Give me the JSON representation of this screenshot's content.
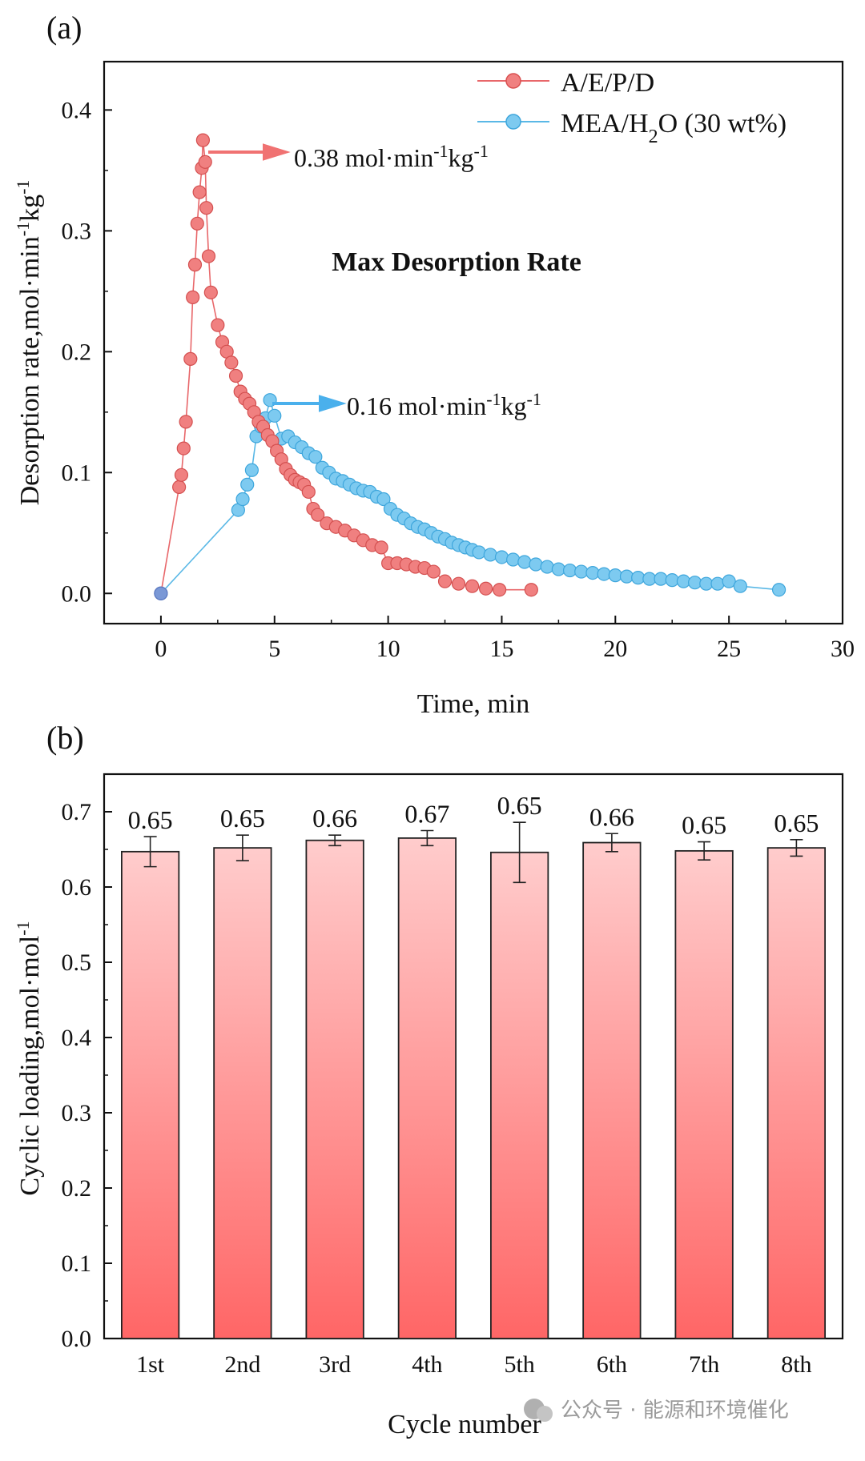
{
  "panel_a": {
    "label": "(a)"
  },
  "panel_b": {
    "label": "(b)"
  },
  "watermark": {
    "text": "公众号 · 能源和环境催化"
  },
  "colors": {
    "aepd": "#e8676a",
    "aepd_fill": "#f08080",
    "mea": "#5ab8e6",
    "mea_fill": "#7dcaf0",
    "arrow_red": "#f07272",
    "arrow_blue": "#4ab0ec",
    "bar_top": "#ffcccc",
    "bar_bottom": "#ff6666"
  },
  "chart_data": [
    {
      "type": "scatter",
      "title": "Max Desorption Rate",
      "xlabel": "Time, min",
      "ylabel_main": "Desorption rate,mol·min",
      "ylabel_sup1": "-1",
      "ylabel_mid": "kg",
      "ylabel_sup2": "-1",
      "xlim": [
        -2.5,
        30
      ],
      "ylim": [
        -0.025,
        0.44
      ],
      "xticks": [
        0,
        5,
        10,
        15,
        20,
        25,
        30
      ],
      "xtick_labels": [
        "0",
        "5",
        "10",
        "15",
        "20",
        "25",
        "30"
      ],
      "yticks": [
        0.0,
        0.1,
        0.2,
        0.3,
        0.4
      ],
      "ytick_labels": [
        "0.0",
        "0.1",
        "0.2",
        "0.3",
        "0.4"
      ],
      "grid": false,
      "legend_position": "top-right",
      "annotations": [
        {
          "main": "0.38 mol·min",
          "sup1": "-1",
          "mid": "kg",
          "sup2": "-1",
          "x": 1.8,
          "y": 0.375,
          "color_key": "arrow_red"
        },
        {
          "main": "0.16 mol·min",
          "sup1": "-1",
          "mid": "kg",
          "sup2": "-1",
          "x": 4.8,
          "y": 0.163,
          "color_key": "arrow_blue"
        }
      ],
      "series": [
        {
          "name": "A/E/P/D",
          "color_key": "aepd",
          "x": [
            0,
            0.8,
            0.9,
            1.0,
            1.1,
            1.3,
            1.4,
            1.5,
            1.6,
            1.7,
            1.8,
            1.85,
            1.95,
            2.0,
            2.1,
            2.2,
            2.5,
            2.7,
            2.9,
            3.1,
            3.3,
            3.5,
            3.7,
            3.9,
            4.1,
            4.3,
            4.5,
            4.7,
            4.9,
            5.1,
            5.3,
            5.5,
            5.7,
            5.9,
            6.1,
            6.3,
            6.5,
            6.7,
            6.9,
            7.3,
            7.7,
            8.1,
            8.5,
            8.9,
            9.3,
            9.7,
            10.0,
            10.4,
            10.8,
            11.2,
            11.6,
            12.0,
            12.5,
            13.1,
            13.7,
            14.3,
            14.9,
            16.3
          ],
          "y": [
            0.0,
            0.088,
            0.098,
            0.12,
            0.142,
            0.194,
            0.245,
            0.272,
            0.306,
            0.332,
            0.352,
            0.375,
            0.357,
            0.319,
            0.279,
            0.249,
            0.222,
            0.208,
            0.2,
            0.191,
            0.18,
            0.167,
            0.161,
            0.157,
            0.15,
            0.142,
            0.138,
            0.131,
            0.126,
            0.118,
            0.111,
            0.103,
            0.098,
            0.094,
            0.092,
            0.09,
            0.084,
            0.07,
            0.065,
            0.058,
            0.055,
            0.052,
            0.048,
            0.044,
            0.04,
            0.038,
            0.025,
            0.025,
            0.024,
            0.022,
            0.021,
            0.018,
            0.01,
            0.008,
            0.006,
            0.004,
            0.003,
            0.003
          ]
        },
        {
          "name": "MEA/H",
          "name_sub": "2",
          "name_rest": "O (30 wt%)",
          "color_key": "mea",
          "x": [
            0,
            3.4,
            3.6,
            3.8,
            4.0,
            4.2,
            4.4,
            4.6,
            4.8,
            5.0,
            5.3,
            5.6,
            5.9,
            6.2,
            6.5,
            6.8,
            7.1,
            7.4,
            7.7,
            8.0,
            8.3,
            8.6,
            8.9,
            9.2,
            9.5,
            9.8,
            10.1,
            10.4,
            10.7,
            11.0,
            11.3,
            11.6,
            11.9,
            12.2,
            12.5,
            12.8,
            13.1,
            13.4,
            13.7,
            14.0,
            14.5,
            15.0,
            15.5,
            16.0,
            16.5,
            17.0,
            17.5,
            18.0,
            18.5,
            19.0,
            19.5,
            20.0,
            20.5,
            21.0,
            21.5,
            22.0,
            22.5,
            23.0,
            23.5,
            24.0,
            24.5,
            25.0,
            25.5,
            27.2
          ],
          "y": [
            0.0,
            0.069,
            0.078,
            0.09,
            0.102,
            0.13,
            0.138,
            0.145,
            0.16,
            0.147,
            0.128,
            0.13,
            0.125,
            0.121,
            0.116,
            0.113,
            0.104,
            0.1,
            0.095,
            0.093,
            0.09,
            0.087,
            0.085,
            0.084,
            0.08,
            0.078,
            0.07,
            0.065,
            0.062,
            0.058,
            0.055,
            0.053,
            0.05,
            0.047,
            0.045,
            0.042,
            0.04,
            0.038,
            0.036,
            0.034,
            0.032,
            0.03,
            0.028,
            0.026,
            0.024,
            0.022,
            0.02,
            0.019,
            0.018,
            0.017,
            0.016,
            0.015,
            0.014,
            0.013,
            0.012,
            0.012,
            0.011,
            0.01,
            0.009,
            0.008,
            0.008,
            0.01,
            0.006,
            0.003
          ]
        }
      ]
    },
    {
      "type": "bar",
      "xlabel": "Cycle number",
      "ylabel_main": "Cyclic loading,mol·mol",
      "ylabel_sup1": "-1",
      "categories": [
        "1st",
        "2nd",
        "3rd",
        "4th",
        "5th",
        "6th",
        "7th",
        "8th"
      ],
      "values": [
        0.647,
        0.652,
        0.662,
        0.665,
        0.646,
        0.659,
        0.648,
        0.652
      ],
      "errors": [
        0.02,
        0.017,
        0.007,
        0.01,
        0.04,
        0.012,
        0.012,
        0.011
      ],
      "value_labels": [
        "0.65",
        "0.65",
        "0.66",
        "0.67",
        "0.65",
        "0.66",
        "0.65",
        "0.65"
      ],
      "ylim": [
        0,
        0.75
      ],
      "yticks": [
        0.0,
        0.1,
        0.2,
        0.3,
        0.4,
        0.5,
        0.6,
        0.7
      ],
      "ytick_labels": [
        "0.0",
        "0.1",
        "0.2",
        "0.3",
        "0.4",
        "0.5",
        "0.6",
        "0.7"
      ],
      "grid": false
    }
  ]
}
